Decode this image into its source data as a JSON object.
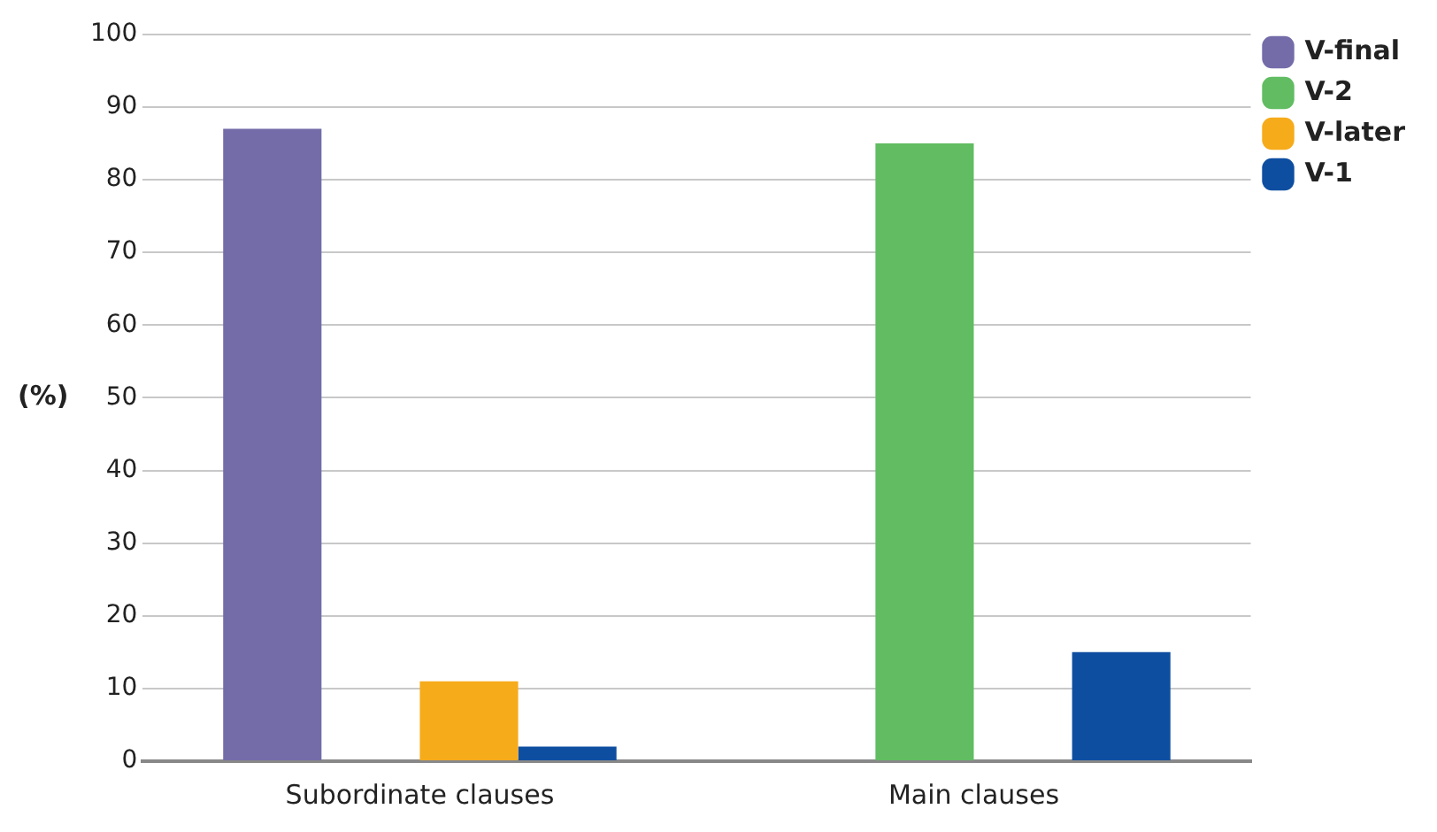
{
  "chart_data": {
    "type": "bar",
    "ylabel": "(%)",
    "categories": [
      "Subordinate clauses",
      "Main clauses"
    ],
    "series": [
      {
        "name": "V-final",
        "color": "#736ca9",
        "values": [
          87,
          0
        ]
      },
      {
        "name": "V-2",
        "color": "#61bc62",
        "values": [
          0,
          85
        ]
      },
      {
        "name": "V-later",
        "color": "#f6ab1a",
        "values": [
          11,
          0
        ]
      },
      {
        "name": "V-1",
        "color": "#0e4ea1",
        "values": [
          2,
          15
        ]
      }
    ],
    "ylim": [
      0,
      100
    ],
    "yticks": [
      0,
      10,
      20,
      30,
      40,
      50,
      60,
      70,
      80,
      90,
      100
    ],
    "grid": "y",
    "legend": "top right"
  }
}
